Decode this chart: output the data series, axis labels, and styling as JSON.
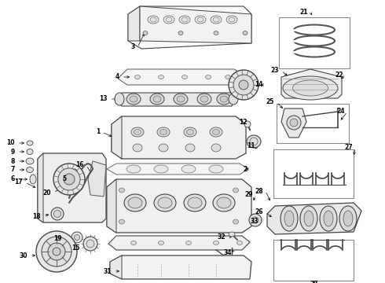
{
  "bg": "#ffffff",
  "fg": "#333333",
  "figsize": [
    4.9,
    3.6
  ],
  "dpi": 100
}
